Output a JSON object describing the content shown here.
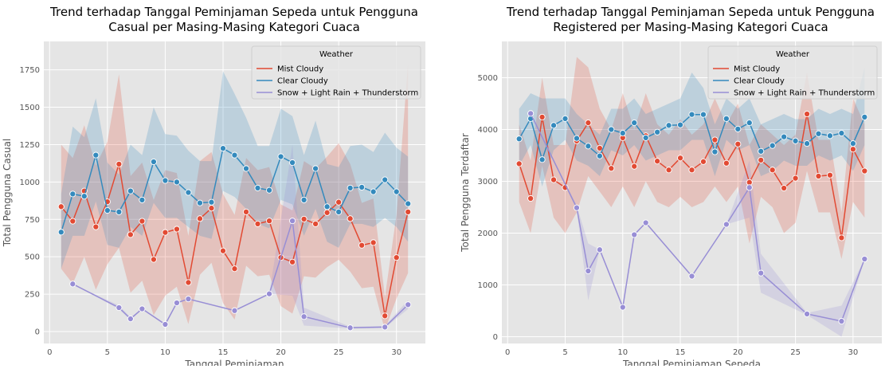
{
  "chart_data": [
    {
      "type": "line",
      "title": "Trend terhadap Tanggal Peminjaman Sepeda untuk Pengguna\nCasual per Masing-Masing Kategori Cuaca",
      "xlabel": "Tanggal Peminjaman",
      "ylabel": "Total Pengguna Casual",
      "xlim": [
        -0.5,
        32.5
      ],
      "ylim": [
        -80,
        1940
      ],
      "xticks": [
        0,
        5,
        10,
        15,
        20,
        25,
        30
      ],
      "yticks": [
        0,
        250,
        500,
        750,
        1000,
        1250,
        1500,
        1750
      ],
      "grid": true,
      "legend": {
        "title": "Weather",
        "placement": "top-right"
      },
      "series": [
        {
          "name": "Mist Cloudy",
          "color": "#e24a33",
          "x": [
            1,
            2,
            3,
            4,
            5,
            6,
            7,
            8,
            9,
            10,
            11,
            12,
            13,
            14,
            15,
            16,
            17,
            18,
            19,
            20,
            21,
            22,
            23,
            24,
            25,
            26,
            27,
            28,
            29,
            30,
            31
          ],
          "values": [
            835,
            738,
            940,
            700,
            868,
            1120,
            648,
            738,
            482,
            663,
            685,
            328,
            755,
            825,
            540,
            420,
            800,
            720,
            740,
            495,
            465,
            752,
            720,
            795,
            865,
            755,
            577,
            595,
            105,
            495,
            800
          ],
          "band_low": [
            420,
            320,
            500,
            280,
            450,
            560,
            260,
            340,
            110,
            240,
            300,
            50,
            380,
            460,
            190,
            80,
            440,
            370,
            380,
            170,
            120,
            370,
            360,
            430,
            480,
            400,
            290,
            300,
            10,
            220,
            390
          ],
          "band_high": [
            1250,
            1160,
            1380,
            1110,
            1270,
            1720,
            1040,
            1130,
            880,
            1080,
            1060,
            640,
            1140,
            1200,
            920,
            780,
            1160,
            1080,
            1100,
            850,
            810,
            1140,
            1090,
            1170,
            1260,
            1120,
            860,
            890,
            230,
            780,
            1790
          ]
        },
        {
          "name": "Clear Cloudy",
          "color": "#348abd",
          "x": [
            1,
            2,
            3,
            4,
            5,
            6,
            7,
            8,
            9,
            10,
            11,
            12,
            13,
            14,
            15,
            16,
            17,
            18,
            19,
            20,
            21,
            22,
            23,
            24,
            25,
            26,
            27,
            28,
            29,
            30,
            31
          ],
          "values": [
            665,
            920,
            905,
            1180,
            810,
            800,
            940,
            880,
            1135,
            1010,
            1000,
            930,
            860,
            865,
            1225,
            1180,
            1090,
            960,
            945,
            1170,
            1130,
            880,
            1090,
            835,
            800,
            960,
            965,
            935,
            1015,
            935,
            855
          ],
          "band_low": [
            420,
            640,
            640,
            870,
            580,
            560,
            700,
            640,
            860,
            760,
            760,
            700,
            640,
            620,
            940,
            900,
            820,
            720,
            690,
            880,
            850,
            640,
            820,
            600,
            560,
            720,
            720,
            700,
            760,
            700,
            600
          ],
          "band_high": [
            920,
            1370,
            1300,
            1560,
            1130,
            1050,
            1250,
            1180,
            1500,
            1320,
            1310,
            1210,
            1140,
            1140,
            1740,
            1590,
            1430,
            1240,
            1240,
            1490,
            1440,
            1180,
            1410,
            1120,
            1100,
            1240,
            1250,
            1200,
            1330,
            1230,
            1170
          ]
        },
        {
          "name": "Snow + Light Rain + Thunderstorm",
          "color": "#988ed5",
          "x": [
            2,
            6,
            7,
            8,
            10,
            11,
            12,
            16,
            19,
            21,
            22,
            26,
            29,
            31
          ],
          "values": [
            318,
            160,
            85,
            152,
            48,
            192,
            218,
            140,
            252,
            740,
            100,
            25,
            30,
            180
          ],
          "band_low": [
            318,
            150,
            75,
            152,
            48,
            192,
            218,
            140,
            252,
            240,
            40,
            20,
            25,
            150
          ],
          "band_high": [
            318,
            175,
            95,
            152,
            48,
            192,
            218,
            140,
            252,
            1250,
            160,
            32,
            38,
            210
          ]
        }
      ]
    },
    {
      "type": "line",
      "title": "Trend terhadap Tanggal Peminjaman Sepeda untuk Pengguna\nRegistered per Masing-Masing Kategori Cuaca",
      "xlabel": "Tanggal Peminjaman Sepeda",
      "ylabel": "Total Pengguna Terdaftar",
      "xlim": [
        -0.5,
        32.5
      ],
      "ylim": [
        -130,
        5700
      ],
      "xticks": [
        0,
        5,
        10,
        15,
        20,
        25,
        30
      ],
      "yticks": [
        0,
        1000,
        2000,
        3000,
        4000,
        5000
      ],
      "grid": true,
      "legend": {
        "title": "Weather",
        "placement": "top-right"
      },
      "series": [
        {
          "name": "Mist Cloudy",
          "color": "#e24a33",
          "x": [
            1,
            2,
            3,
            4,
            5,
            6,
            7,
            8,
            9,
            10,
            11,
            12,
            13,
            14,
            15,
            16,
            17,
            18,
            19,
            20,
            21,
            22,
            23,
            24,
            25,
            26,
            27,
            28,
            29,
            30,
            31
          ],
          "values": [
            3340,
            2670,
            4240,
            3030,
            2880,
            3780,
            4130,
            3640,
            3250,
            3840,
            3290,
            3880,
            3390,
            3220,
            3450,
            3220,
            3380,
            3800,
            3350,
            3720,
            2980,
            3410,
            3220,
            2870,
            3060,
            4300,
            3100,
            3120,
            1910,
            3620,
            3200
          ],
          "band_low": [
            2600,
            2000,
            3300,
            2300,
            2000,
            2400,
            3100,
            2800,
            2500,
            2900,
            2500,
            3000,
            2600,
            2500,
            2700,
            2500,
            2600,
            2900,
            2600,
            2900,
            1800,
            2700,
            2500,
            2000,
            2200,
            3200,
            2400,
            2400,
            1500,
            2600,
            2300
          ],
          "band_high": [
            4100,
            3400,
            5000,
            3700,
            3700,
            5400,
            5200,
            4400,
            4000,
            4700,
            4000,
            4700,
            4100,
            3900,
            4200,
            3900,
            4100,
            4600,
            4100,
            4500,
            3700,
            4100,
            3900,
            3700,
            3900,
            5100,
            3800,
            3800,
            2400,
            4600,
            4100
          ]
        },
        {
          "name": "Clear Cloudy",
          "color": "#348abd",
          "x": [
            1,
            2,
            3,
            4,
            5,
            6,
            7,
            8,
            9,
            10,
            11,
            12,
            13,
            14,
            15,
            16,
            17,
            18,
            19,
            20,
            21,
            22,
            23,
            24,
            25,
            26,
            27,
            28,
            29,
            30,
            31
          ],
          "values": [
            3820,
            4210,
            3420,
            4080,
            4210,
            3830,
            3680,
            3490,
            4000,
            3930,
            4130,
            3840,
            3950,
            4080,
            4090,
            4290,
            4290,
            3570,
            4210,
            4010,
            4130,
            3580,
            3690,
            3860,
            3780,
            3730,
            3920,
            3880,
            3930,
            3730,
            4240
          ],
          "band_low": [
            3300,
            3700,
            2900,
            3600,
            3800,
            3400,
            3300,
            3100,
            3600,
            3500,
            3700,
            3400,
            3500,
            3600,
            3600,
            3800,
            3800,
            3100,
            3800,
            3600,
            3700,
            3100,
            3200,
            3400,
            3300,
            3300,
            3500,
            3400,
            3500,
            3200,
            3700
          ],
          "band_high": [
            4400,
            4700,
            4600,
            4600,
            4600,
            4300,
            4100,
            3900,
            4400,
            4400,
            4600,
            4300,
            4400,
            4500,
            4600,
            5100,
            4800,
            4100,
            4600,
            4400,
            4600,
            4100,
            4200,
            4300,
            4200,
            4200,
            4400,
            4300,
            4400,
            4300,
            5200
          ]
        },
        {
          "name": "Snow + Light Rain + Thunderstorm",
          "color": "#988ed5",
          "x": [
            2,
            6,
            7,
            8,
            10,
            11,
            12,
            16,
            19,
            21,
            22,
            26,
            29,
            31
          ],
          "values": [
            4310,
            2490,
            1270,
            1680,
            570,
            1970,
            2200,
            1170,
            2170,
            2880,
            1230,
            440,
            300,
            1500
          ],
          "band_low": [
            4310,
            2450,
            700,
            1680,
            570,
            1970,
            2200,
            1170,
            2170,
            2300,
            850,
            420,
            0,
            1500
          ],
          "band_high": [
            4310,
            2530,
            1800,
            1680,
            570,
            1970,
            2200,
            1170,
            2170,
            3400,
            1600,
            460,
            600,
            1500
          ]
        }
      ]
    }
  ]
}
